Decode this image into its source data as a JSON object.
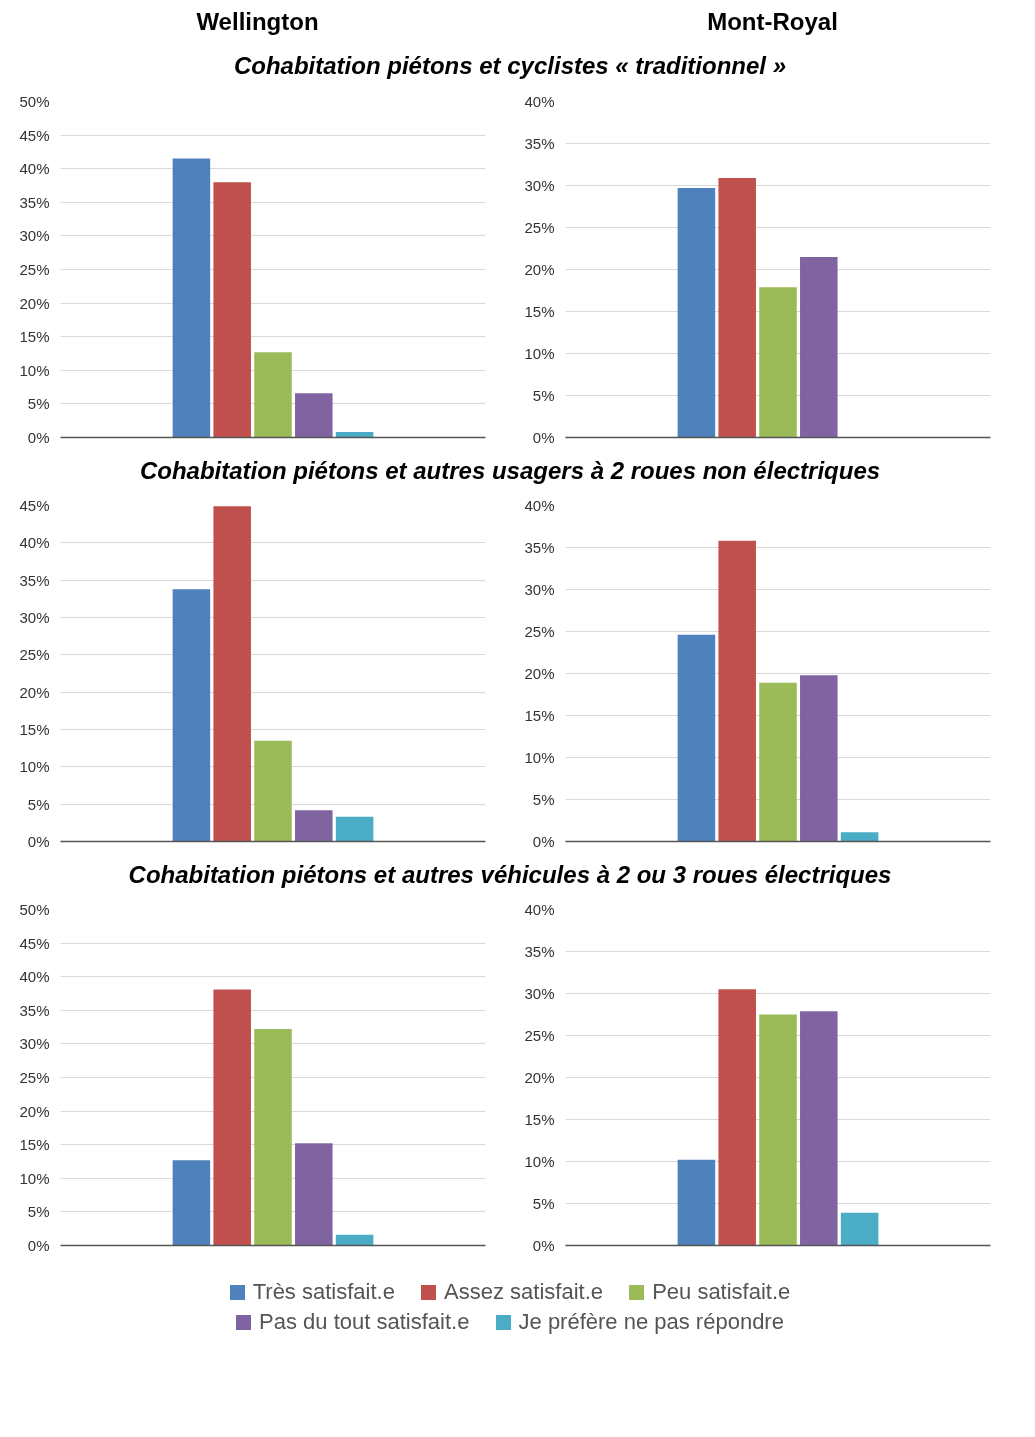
{
  "chart_data": [
    {
      "type": "bar",
      "title": "Wellington",
      "subtitle": "Cohabitation piétons et cyclistes « traditionnel »",
      "categories": [
        null
      ],
      "legend": "bottom",
      "grid": "y",
      "tick_labels": "y",
      "ylim": [
        0,
        50
      ],
      "yticks": [
        {
          "value": 0,
          "label": "0%"
        },
        {
          "value": 5,
          "label": "5%"
        },
        {
          "value": 10,
          "label": "10%"
        },
        {
          "value": 15,
          "label": "15%"
        },
        {
          "value": 20,
          "label": "20%"
        },
        {
          "value": 25,
          "label": "25%"
        },
        {
          "value": 30,
          "label": "30%"
        },
        {
          "value": 35,
          "label": "35%"
        },
        {
          "value": 40,
          "label": "40%"
        },
        {
          "value": 45,
          "label": "45%"
        },
        {
          "value": 50,
          "label": "50%"
        }
      ],
      "series": [
        {
          "name": "Très satisfait.e",
          "color": "#4f81bd",
          "values": [
            41.5
          ]
        },
        {
          "name": "Assez satisfait.e",
          "color": "#c0504d",
          "values": [
            38
          ]
        },
        {
          "name": "Peu satisfait.e",
          "color": "#9bbb59",
          "values": [
            12.7
          ]
        },
        {
          "name": "Pas du tout satisfait.e",
          "color": "#8064a2",
          "values": [
            6.6
          ]
        },
        {
          "name": "Je préfère ne pas répondre",
          "color": "#4bacc6",
          "values": [
            0.8
          ]
        }
      ]
    },
    {
      "type": "bar",
      "title": "Mont-Royal",
      "categories": [
        null
      ],
      "grid": "y",
      "tick_labels": "y",
      "ylim": [
        0,
        40
      ],
      "yticks": [
        {
          "value": 0,
          "label": "0%"
        },
        {
          "value": 5,
          "label": "5%"
        },
        {
          "value": 10,
          "label": "10%"
        },
        {
          "value": 15,
          "label": "15%"
        },
        {
          "value": 20,
          "label": "20%"
        },
        {
          "value": 25,
          "label": "25%"
        },
        {
          "value": 30,
          "label": "30%"
        },
        {
          "value": 35,
          "label": "35%"
        },
        {
          "value": 40,
          "label": "40%"
        }
      ],
      "series": [
        {
          "color": "#4f81bd",
          "values": [
            29.7
          ]
        },
        {
          "color": "#c0504d",
          "values": [
            30.9
          ]
        },
        {
          "color": "#9bbb59",
          "values": [
            17.9
          ]
        },
        {
          "color": "#8064a2",
          "values": [
            21.5
          ]
        },
        {
          "color": "#4bacc6",
          "values": [
            null
          ]
        }
      ]
    },
    {
      "type": "bar",
      "subtitle": "Cohabitation piétons et autres usagers à 2 roues non électriques",
      "categories": [
        null
      ],
      "grid": "y",
      "tick_labels": "y",
      "ylim": [
        0,
        45
      ],
      "yticks": [
        {
          "value": 0,
          "label": "0%"
        },
        {
          "value": 5,
          "label": "5%"
        },
        {
          "value": 10,
          "label": "10%"
        },
        {
          "value": 15,
          "label": "15%"
        },
        {
          "value": 20,
          "label": "20%"
        },
        {
          "value": 25,
          "label": "25%"
        },
        {
          "value": 30,
          "label": "30%"
        },
        {
          "value": 35,
          "label": "35%"
        },
        {
          "value": 40,
          "label": "40%"
        },
        {
          "value": 45,
          "label": "45%"
        }
      ],
      "series": [
        {
          "color": "#4f81bd",
          "values": [
            33.8
          ]
        },
        {
          "color": "#c0504d",
          "values": [
            44.9
          ]
        },
        {
          "color": "#9bbb59",
          "values": [
            13.5
          ]
        },
        {
          "color": "#8064a2",
          "values": [
            4.2
          ]
        },
        {
          "color": "#4bacc6",
          "values": [
            3.3
          ]
        }
      ]
    },
    {
      "type": "bar",
      "categories": [
        null
      ],
      "grid": "y",
      "tick_labels": "y",
      "ylim": [
        0,
        40
      ],
      "yticks": [
        {
          "value": 0,
          "label": "0%"
        },
        {
          "value": 5,
          "label": "5%"
        },
        {
          "value": 10,
          "label": "10%"
        },
        {
          "value": 15,
          "label": "15%"
        },
        {
          "value": 20,
          "label": "20%"
        },
        {
          "value": 25,
          "label": "25%"
        },
        {
          "value": 30,
          "label": "30%"
        },
        {
          "value": 35,
          "label": "35%"
        },
        {
          "value": 40,
          "label": "40%"
        }
      ],
      "series": [
        {
          "color": "#4f81bd",
          "values": [
            24.6
          ]
        },
        {
          "color": "#c0504d",
          "values": [
            35.8
          ]
        },
        {
          "color": "#9bbb59",
          "values": [
            18.9
          ]
        },
        {
          "color": "#8064a2",
          "values": [
            19.8
          ]
        },
        {
          "color": "#4bacc6",
          "values": [
            1.1
          ]
        }
      ]
    },
    {
      "type": "bar",
      "subtitle": "Cohabitation piétons et autres véhicules à 2 ou 3 roues électriques",
      "categories": [
        null
      ],
      "grid": "y",
      "tick_labels": "y",
      "ylim": [
        0,
        50
      ],
      "yticks": [
        {
          "value": 0,
          "label": "0%"
        },
        {
          "value": 5,
          "label": "5%"
        },
        {
          "value": 10,
          "label": "10%"
        },
        {
          "value": 15,
          "label": "15%"
        },
        {
          "value": 20,
          "label": "20%"
        },
        {
          "value": 25,
          "label": "25%"
        },
        {
          "value": 30,
          "label": "30%"
        },
        {
          "value": 35,
          "label": "35%"
        },
        {
          "value": 40,
          "label": "40%"
        },
        {
          "value": 45,
          "label": "45%"
        },
        {
          "value": 50,
          "label": "50%"
        }
      ],
      "series": [
        {
          "color": "#4f81bd",
          "values": [
            12.7
          ]
        },
        {
          "color": "#c0504d",
          "values": [
            38.1
          ]
        },
        {
          "color": "#9bbb59",
          "values": [
            32.2
          ]
        },
        {
          "color": "#8064a2",
          "values": [
            15.2
          ]
        },
        {
          "color": "#4bacc6",
          "values": [
            1.6
          ]
        }
      ]
    },
    {
      "type": "bar",
      "categories": [
        null
      ],
      "grid": "y",
      "tick_labels": "y",
      "ylim": [
        0,
        40
      ],
      "yticks": [
        {
          "value": 0,
          "label": "0%"
        },
        {
          "value": 5,
          "label": "5%"
        },
        {
          "value": 10,
          "label": "10%"
        },
        {
          "value": 15,
          "label": "15%"
        },
        {
          "value": 20,
          "label": "20%"
        },
        {
          "value": 25,
          "label": "25%"
        },
        {
          "value": 30,
          "label": "30%"
        },
        {
          "value": 35,
          "label": "35%"
        },
        {
          "value": 40,
          "label": "40%"
        }
      ],
      "series": [
        {
          "color": "#4f81bd",
          "values": [
            10.2
          ]
        },
        {
          "color": "#c0504d",
          "values": [
            30.5
          ]
        },
        {
          "color": "#9bbb59",
          "values": [
            27.5
          ]
        },
        {
          "color": "#8064a2",
          "values": [
            27.9
          ]
        },
        {
          "color": "#4bacc6",
          "values": [
            3.9
          ]
        }
      ]
    }
  ]
}
